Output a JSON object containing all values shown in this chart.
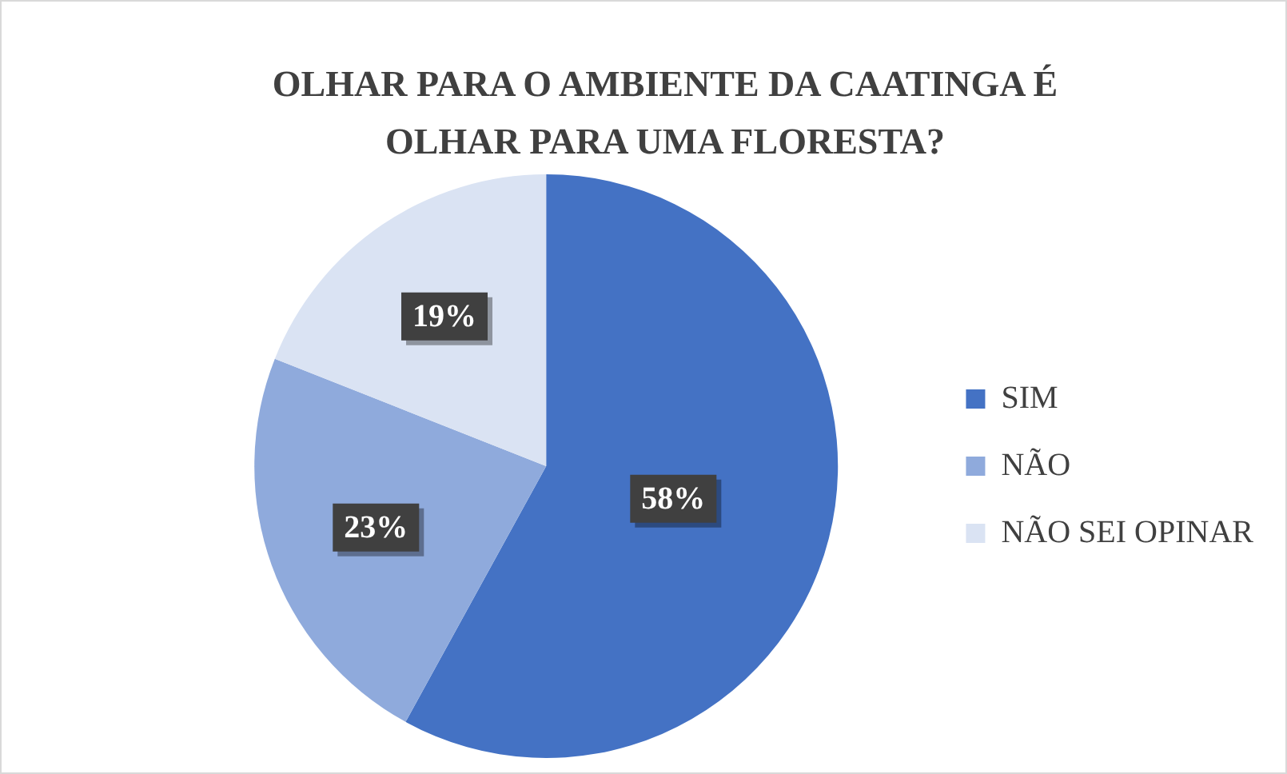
{
  "chart_data": {
    "type": "pie",
    "title": "OLHAR PARA O AMBIENTE DA CAATINGA É OLHAR PARA UMA FLORESTA?",
    "categories": [
      "SIM",
      "NÃO",
      "NÃO SEI OPINAR"
    ],
    "values": [
      58,
      23,
      19
    ],
    "colors": [
      "#4472c4",
      "#8faadc",
      "#dae3f3"
    ],
    "value_labels": [
      "58%",
      "23%",
      "19%"
    ],
    "legend": "right"
  }
}
